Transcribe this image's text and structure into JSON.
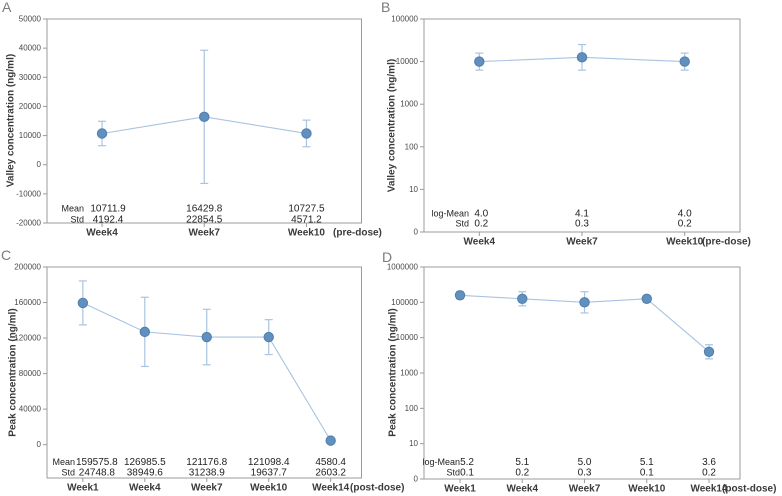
{
  "colors": {
    "marker_fill": "#6090c0",
    "marker_edge": "#527ea8",
    "error_line": "#a8c4e0",
    "series_line": "#a8c4e0",
    "axis_line": "#9b9b9b",
    "tick_text": "#4a4a4a",
    "label_text": "#3a3a3a",
    "stats_text": "#1f1f1f",
    "panel_letter": "#7b7b7b",
    "background": "#ffffff"
  },
  "chart_data": [
    {
      "id": "A",
      "panel_label": "A",
      "type": "line",
      "yscale": "linear",
      "ylabel": "Valley concentration (ng/ml)",
      "x_suffix": "(pre-dose)",
      "ylim": [
        -20000,
        50000
      ],
      "yticks": [
        {
          "value": 50000,
          "label": "50000"
        },
        {
          "value": 40000,
          "label": "40000"
        },
        {
          "value": 30000,
          "label": "30000"
        },
        {
          "value": 20000,
          "label": "20000"
        },
        {
          "value": 10000,
          "label": "10000"
        },
        {
          "value": 0,
          "label": "0"
        },
        {
          "value": -10000,
          "label": "-10000"
        },
        {
          "value": -20000,
          "label": "-20000"
        }
      ],
      "categories": [
        "Week4",
        "Week7",
        "Week10"
      ],
      "series": [
        {
          "name": "mean",
          "values": [
            10711.9,
            16429.8,
            10727.5
          ]
        }
      ],
      "error": [
        4192.4,
        22854.5,
        4571.2
      ],
      "stats_rows": [
        {
          "label": "Mean",
          "values": [
            "10711.9",
            "16429.8",
            "10727.5"
          ]
        },
        {
          "label": "Std",
          "values": [
            "4192.4",
            "22854.5",
            "4571.2"
          ]
        }
      ]
    },
    {
      "id": "B",
      "panel_label": "B",
      "type": "line",
      "yscale": "log",
      "ylabel": "Valley concentration (ng/ml)",
      "x_suffix": "(pre-dose)",
      "values_are_log10": true,
      "ylim_log": [
        0,
        5
      ],
      "yticks": [
        {
          "log": 5,
          "label": "100000"
        },
        {
          "log": 4,
          "label": "10000"
        },
        {
          "log": 3,
          "label": "1000"
        },
        {
          "log": 2,
          "label": "100"
        },
        {
          "log": 1,
          "label": "10"
        },
        {
          "log": 0,
          "label": "0"
        }
      ],
      "categories": [
        "Week4",
        "Week7",
        "Week10"
      ],
      "series": [
        {
          "name": "log-mean",
          "values": [
            4.0,
            4.1,
            4.0
          ]
        }
      ],
      "error": [
        0.2,
        0.3,
        0.2
      ],
      "stats_rows": [
        {
          "label": "log-Mean",
          "values": [
            "4.0",
            "4.1",
            "4.0"
          ]
        },
        {
          "label": "Std",
          "values": [
            "0.2",
            "0.3",
            "0.2"
          ]
        }
      ]
    },
    {
      "id": "C",
      "panel_label": "C",
      "type": "line",
      "yscale": "linear",
      "ylabel": "Peak concentration (ng/ml)",
      "x_suffix": "(post-dose)",
      "ylim": [
        -37500,
        200000
      ],
      "yticks": [
        {
          "value": 200000,
          "label": "200000"
        },
        {
          "value": 160000,
          "label": "160000"
        },
        {
          "value": 120000,
          "label": "120000"
        },
        {
          "value": 80000,
          "label": "80000"
        },
        {
          "value": 40000,
          "label": "40000"
        },
        {
          "value": 0,
          "label": "0"
        }
      ],
      "categories": [
        "Week1",
        "Week4",
        "Week7",
        "Week10",
        "Week14"
      ],
      "series": [
        {
          "name": "mean",
          "values": [
            159575.8,
            126985.5,
            121176.8,
            121098.4,
            4580.4
          ]
        }
      ],
      "error": [
        24748.8,
        38949.6,
        31238.9,
        19637.7,
        2603.2
      ],
      "stats_rows": [
        {
          "label": "Mean",
          "values": [
            "159575.8",
            "126985.5",
            "121176.8",
            "121098.4",
            "4580.4"
          ]
        },
        {
          "label": "Std",
          "values": [
            "24748.8",
            "38949.6",
            "31238.9",
            "19637.7",
            "2603.2"
          ]
        }
      ]
    },
    {
      "id": "D",
      "panel_label": "D",
      "type": "line",
      "yscale": "log",
      "ylabel": "Peak concentration (ng/ml)",
      "x_suffix": "(post-dose)",
      "values_are_log10": true,
      "ylim_log": [
        0,
        6
      ],
      "yticks": [
        {
          "log": 6,
          "label": "1000000"
        },
        {
          "log": 5,
          "label": "100000"
        },
        {
          "log": 4,
          "label": "10000"
        },
        {
          "log": 3,
          "label": "1000"
        },
        {
          "log": 2,
          "label": "100"
        },
        {
          "log": 1,
          "label": "10"
        },
        {
          "log": 0,
          "label": "0"
        }
      ],
      "categories": [
        "Week1",
        "Week4",
        "Week7",
        "Week10",
        "Week14"
      ],
      "series": [
        {
          "name": "log-mean",
          "values": [
            5.2,
            5.1,
            5.0,
            5.1,
            3.6
          ]
        }
      ],
      "error": [
        0.1,
        0.2,
        0.3,
        0.1,
        0.2
      ],
      "stats_rows": [
        {
          "label": "log-Mean",
          "values": [
            "5.2",
            "5.1",
            "5.0",
            "5.1",
            "3.6"
          ]
        },
        {
          "label": "Std",
          "values": [
            "0.1",
            "0.2",
            "0.3",
            "0.1",
            "0.2"
          ]
        }
      ]
    }
  ]
}
